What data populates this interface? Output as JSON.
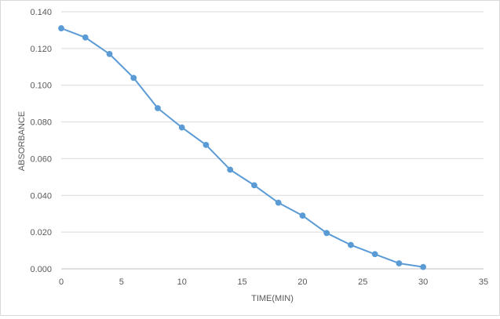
{
  "chart_data": {
    "type": "line",
    "title": "",
    "xlabel": "TIME(MIN)",
    "ylabel": "ABSORBANCE",
    "xlim": [
      0,
      35
    ],
    "ylim": [
      0,
      0.14
    ],
    "xticks": [
      "0",
      "5",
      "10",
      "15",
      "20",
      "25",
      "30",
      "35"
    ],
    "yticks": [
      "0.000",
      "0.020",
      "0.040",
      "0.060",
      "0.080",
      "0.100",
      "0.120",
      "0.140"
    ],
    "grid": "horizontal",
    "legend": "none",
    "series": [
      {
        "color": "#5b9bd5",
        "x": [
          0,
          2,
          4,
          6,
          8,
          10,
          12,
          14,
          16,
          18,
          20,
          22,
          24,
          26,
          28,
          30
        ],
        "y": [
          0.131,
          0.126,
          0.117,
          0.104,
          0.0875,
          0.077,
          0.0675,
          0.054,
          0.0455,
          0.036,
          0.029,
          0.0195,
          0.013,
          0.008,
          0.003,
          0.001
        ]
      }
    ]
  }
}
